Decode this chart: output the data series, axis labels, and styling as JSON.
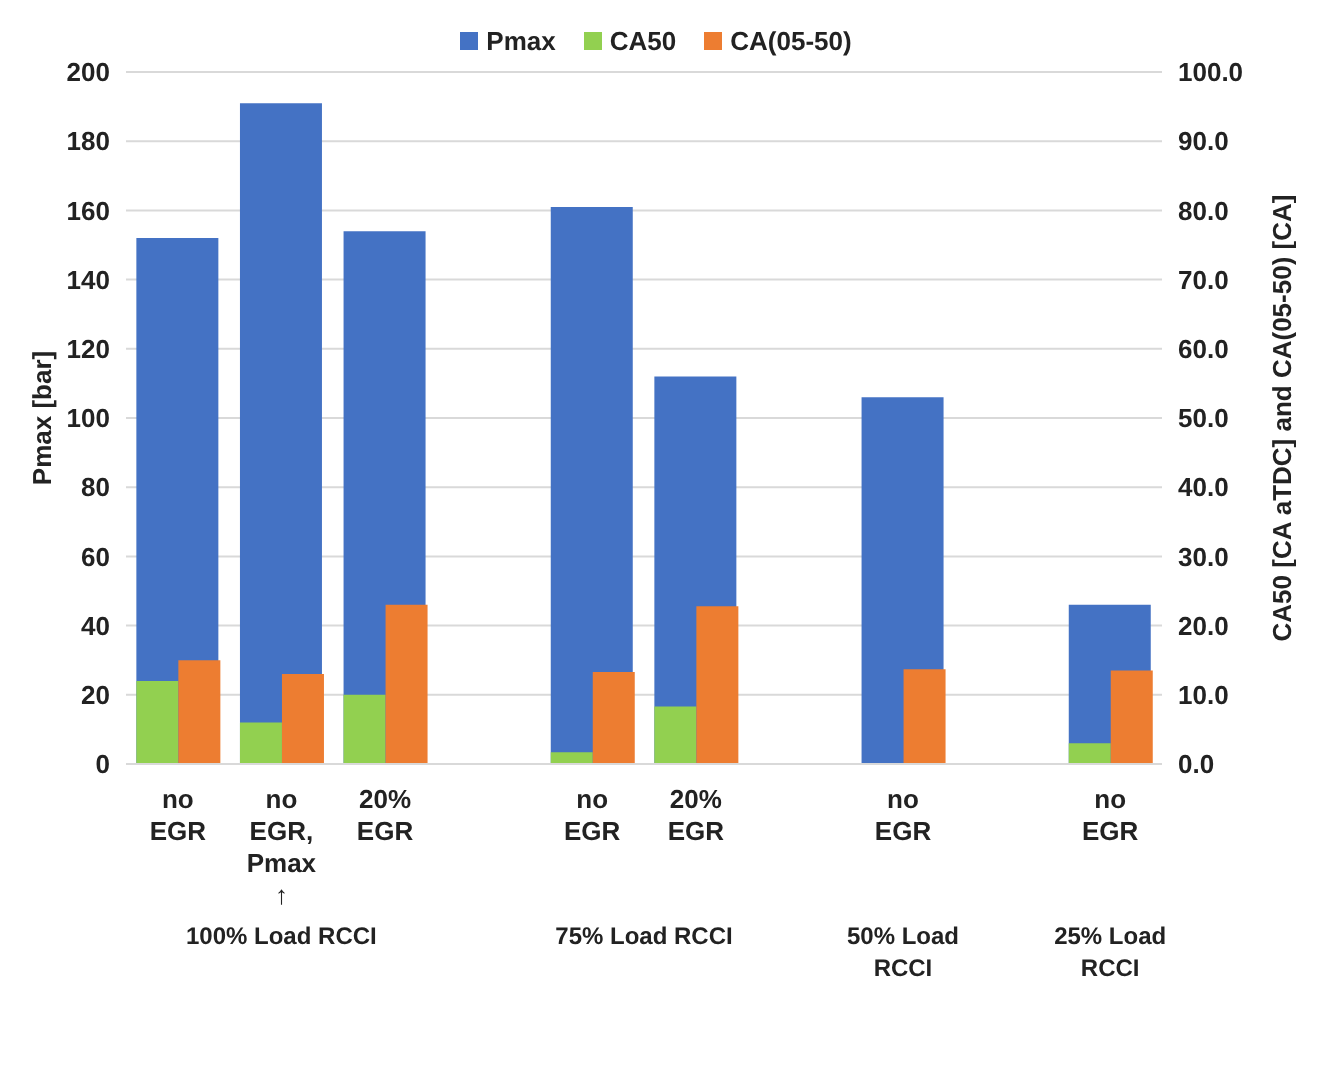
{
  "chart_data": {
    "type": "bar",
    "categories": [
      "no EGR",
      "no EGR, Pmax ↑",
      "20% EGR",
      null,
      "no EGR",
      "20% EGR",
      null,
      "no EGR",
      null,
      "no EGR"
    ],
    "series": [
      {
        "name": "Pmax",
        "color": "#4472c4",
        "values": [
          152,
          191,
          154,
          null,
          161,
          112,
          null,
          106,
          null,
          46
        ]
      },
      {
        "name": "CA50",
        "color": "#92d050",
        "axis": "y2",
        "values": [
          12,
          6,
          10,
          null,
          1.7,
          8.3,
          null,
          null,
          null,
          3
        ]
      },
      {
        "name": "CA(05-50)",
        "color": "#ed7d31",
        "axis": "y2",
        "values": [
          15,
          13,
          23,
          null,
          13.3,
          22.8,
          null,
          13.7,
          null,
          13.5
        ]
      }
    ],
    "ylabel": "Pmax [bar]",
    "y2label": "CA50 [CA aTDC] and CA(05-50) [CA]",
    "ylim": [
      0,
      200
    ],
    "yticks": [
      0,
      20,
      40,
      60,
      80,
      100,
      120,
      140,
      160,
      180,
      200
    ],
    "y2lim": [
      0,
      100
    ],
    "y2ticks": [
      {
        "value": 0,
        "label": "0.0"
      },
      {
        "value": 10,
        "label": "10.0"
      },
      {
        "value": 20,
        "label": "20.0"
      },
      {
        "value": 30,
        "label": "30.0"
      },
      {
        "value": 40,
        "label": "40.0"
      },
      {
        "value": 50,
        "label": "50.0"
      },
      {
        "value": 60,
        "label": "60.0"
      },
      {
        "value": 70,
        "label": "70.0"
      },
      {
        "value": 80,
        "label": "80.0"
      },
      {
        "value": 90,
        "label": "90.0"
      },
      {
        "value": 100,
        "label": "100.0"
      }
    ],
    "annotations": [
      "100% Load RCCI",
      "75% Load RCCI",
      "50% Load RCCI",
      "25% Load RCCI"
    ],
    "grid": "y",
    "legend": "top"
  }
}
